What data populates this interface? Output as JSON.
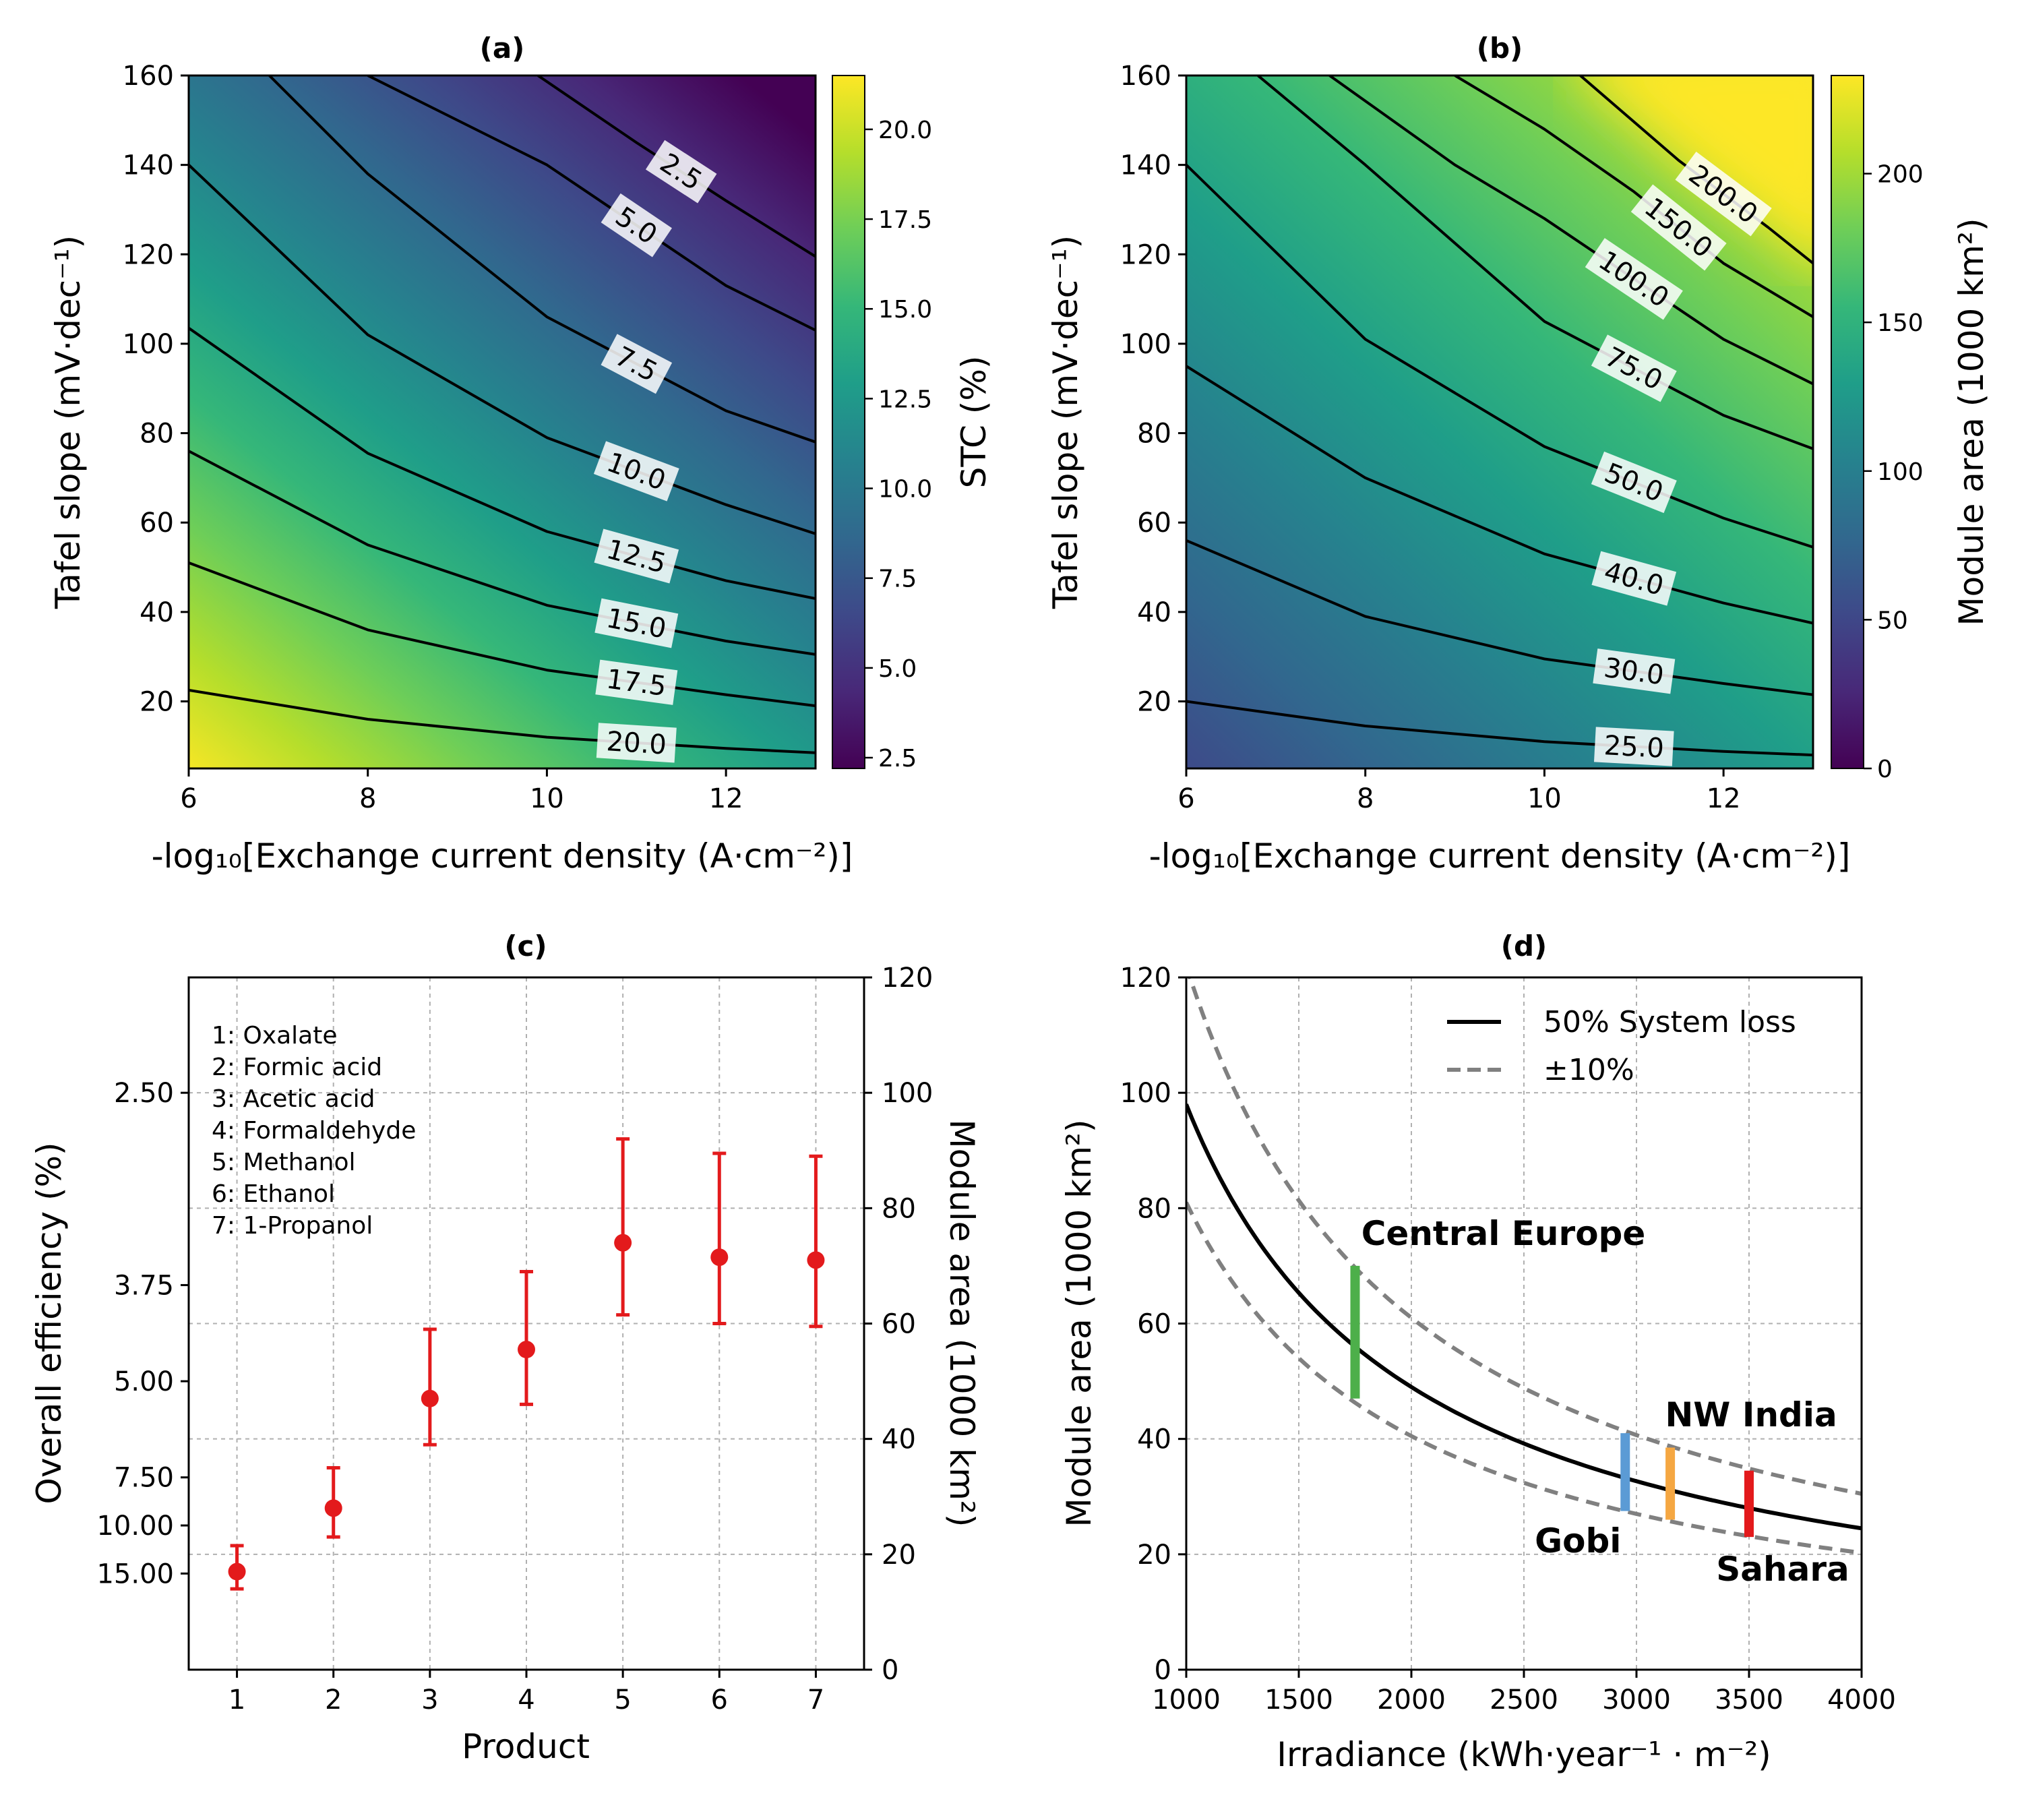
{
  "chart_data": [
    {
      "id": "a",
      "type": "heatmap",
      "title": "(a)",
      "xlabel": "-log₁₀[Exchange current density (A·cm⁻²)]",
      "ylabel": "Tafel slope (mV·dec⁻¹)",
      "xlim": [
        6,
        13
      ],
      "ylim": [
        5,
        160
      ],
      "xticks": [
        "6",
        "8",
        "10",
        "12"
      ],
      "yticks": [
        "20",
        "40",
        "60",
        "80",
        "100",
        "120",
        "140",
        "160"
      ],
      "colorbar": {
        "label": "STC (%)",
        "range": [
          2.2,
          21.5
        ],
        "ticks": [
          "2.5",
          "5.0",
          "7.5",
          "10.0",
          "12.5",
          "15.0",
          "17.5",
          "20.0"
        ],
        "colormap": [
          "#440154",
          "#482878",
          "#3e4989",
          "#31688e",
          "#26828e",
          "#1f9e89",
          "#35b779",
          "#6ece58",
          "#b5de2b",
          "#fde725"
        ]
      },
      "contours": [
        {
          "level": 20.0,
          "label": "20.0",
          "points": [
            [
              6.0,
              22.5
            ],
            [
              8.0,
              16.0
            ],
            [
              10.0,
              12.0
            ],
            [
              12.0,
              9.5
            ],
            [
              13.0,
              8.5
            ]
          ]
        },
        {
          "level": 17.5,
          "label": "17.5",
          "points": [
            [
              6.0,
              51.0
            ],
            [
              8.0,
              36.0
            ],
            [
              10.0,
              27.0
            ],
            [
              12.0,
              21.5
            ],
            [
              13.0,
              19.0
            ]
          ]
        },
        {
          "level": 15.0,
          "label": "15.0",
          "points": [
            [
              6.0,
              76.0
            ],
            [
              8.0,
              55.0
            ],
            [
              10.0,
              41.5
            ],
            [
              12.0,
              33.5
            ],
            [
              13.0,
              30.5
            ]
          ]
        },
        {
          "level": 12.5,
          "label": "12.5",
          "points": [
            [
              6.0,
              103.5
            ],
            [
              8.0,
              75.5
            ],
            [
              10.0,
              58.0
            ],
            [
              12.0,
              47.0
            ],
            [
              13.0,
              43.0
            ]
          ]
        },
        {
          "level": 10.0,
          "label": "10.0",
          "points": [
            [
              6.0,
              140.0
            ],
            [
              8.0,
              102.0
            ],
            [
              10.0,
              79.0
            ],
            [
              12.0,
              64.0
            ],
            [
              13.0,
              57.5
            ]
          ]
        },
        {
          "level": 7.5,
          "label": "7.5",
          "points": [
            [
              6.9,
              160.0
            ],
            [
              8.0,
              138.0
            ],
            [
              10.0,
              106.0
            ],
            [
              12.0,
              85.0
            ],
            [
              13.0,
              78.0
            ]
          ]
        },
        {
          "level": 5.0,
          "label": "5.0",
          "points": [
            [
              8.0,
              160.0
            ],
            [
              10.0,
              140.0
            ],
            [
              12.0,
              113.0
            ],
            [
              13.0,
              103.0
            ]
          ]
        },
        {
          "level": 2.5,
          "label": "2.5",
          "points": [
            [
              9.9,
              160.0
            ],
            [
              11.0,
              145.0
            ],
            [
              12.0,
              132.0
            ],
            [
              13.0,
              119.5
            ]
          ]
        }
      ]
    },
    {
      "id": "b",
      "type": "heatmap",
      "title": "(b)",
      "xlabel": "-log₁₀[Exchange current density (A·cm⁻²)]",
      "ylabel": "Tafel slope (mV·dec⁻¹)",
      "xlim": [
        6,
        13
      ],
      "ylim": [
        5,
        160
      ],
      "xticks": [
        "6",
        "8",
        "10",
        "12"
      ],
      "yticks": [
        "20",
        "40",
        "60",
        "80",
        "100",
        "120",
        "140",
        "160"
      ],
      "colorbar": {
        "label": "Module area (1000 km²)",
        "range": [
          0,
          233
        ],
        "ticks": [
          "0",
          "50",
          "100",
          "150",
          "200"
        ],
        "colormap": [
          "#440154",
          "#482878",
          "#3e4989",
          "#31688e",
          "#26828e",
          "#1f9e89",
          "#35b779",
          "#6ece58",
          "#b5de2b",
          "#fde725"
        ]
      },
      "contours": [
        {
          "level": 25.0,
          "label": "25.0",
          "points": [
            [
              6.0,
              20.0
            ],
            [
              8.0,
              14.5
            ],
            [
              10.0,
              11.0
            ],
            [
              12.0,
              8.8
            ],
            [
              13.0,
              8.0
            ]
          ]
        },
        {
          "level": 30.0,
          "label": "30.0",
          "points": [
            [
              6.0,
              56.0
            ],
            [
              8.0,
              39.0
            ],
            [
              10.0,
              29.5
            ],
            [
              12.0,
              24.0
            ],
            [
              13.0,
              21.5
            ]
          ]
        },
        {
          "level": 40.0,
          "label": "40.0",
          "points": [
            [
              6.0,
              95.0
            ],
            [
              8.0,
              70.0
            ],
            [
              10.0,
              53.0
            ],
            [
              12.0,
              42.0
            ],
            [
              13.0,
              37.5
            ]
          ]
        },
        {
          "level": 50.0,
          "label": "50.0",
          "points": [
            [
              6.0,
              140.0
            ],
            [
              8.0,
              101.0
            ],
            [
              10.0,
              77.0
            ],
            [
              12.0,
              61.0
            ],
            [
              13.0,
              54.5
            ]
          ]
        },
        {
          "level": 75.0,
          "label": "75.0",
          "points": [
            [
              6.8,
              160.0
            ],
            [
              8.0,
              140.0
            ],
            [
              10.0,
              105.0
            ],
            [
              12.0,
              84.0
            ],
            [
              13.0,
              76.5
            ]
          ]
        },
        {
          "level": 100.0,
          "label": "100.0",
          "points": [
            [
              7.6,
              160.0
            ],
            [
              9.0,
              140.0
            ],
            [
              10.0,
              128.0
            ],
            [
              12.0,
              101.0
            ],
            [
              13.0,
              91.0
            ]
          ]
        },
        {
          "level": 150.0,
          "label": "150.0",
          "points": [
            [
              9.0,
              160.0
            ],
            [
              10.0,
              148.0
            ],
            [
              11.0,
              134.0
            ],
            [
              12.0,
              118.0
            ],
            [
              13.0,
              106.0
            ]
          ]
        },
        {
          "level": 200.0,
          "label": "200.0",
          "points": [
            [
              10.4,
              160.0
            ],
            [
              11.5,
              141.0
            ],
            [
              12.5,
              126.0
            ],
            [
              13.0,
              118.0
            ]
          ]
        }
      ]
    },
    {
      "id": "c",
      "type": "scatter",
      "title": "(c)",
      "xlabel": "Product",
      "ylabel": "Overall efficiency (%)",
      "ylabel_right": "Module area (1000 km²)",
      "xlim": [
        0.5,
        7.5
      ],
      "ylim_right": [
        0,
        120
      ],
      "xticks": [
        "1",
        "2",
        "3",
        "4",
        "5",
        "6",
        "7"
      ],
      "yticks_left": [
        "2.50",
        "3.75",
        "5.00",
        "7.50",
        "10.00",
        "15.00"
      ],
      "yticks_right": [
        "0",
        "20",
        "40",
        "60",
        "80",
        "100",
        "120"
      ],
      "products": [
        "1: Oxalate",
        "2: Formic acid",
        "3: Acetic acid",
        "4: Formaldehyde",
        "5: Methanol",
        "6: Ethanol",
        "7: 1-Propanol"
      ],
      "marker_color": "#e31a1c",
      "x": [
        1,
        2,
        3,
        4,
        5,
        6,
        7
      ],
      "y": [
        17.0,
        28.0,
        47.0,
        55.5,
        74.0,
        71.5,
        71.0
      ],
      "y_low": [
        14.0,
        23.0,
        39.0,
        46.0,
        61.5,
        60.0,
        59.5
      ],
      "y_high": [
        21.5,
        35.0,
        59.0,
        69.0,
        92.0,
        89.5,
        89.0
      ]
    },
    {
      "id": "d",
      "type": "line",
      "title": "(d)",
      "xlabel": "Irradiance (kWh·year⁻¹ · m⁻²)",
      "ylabel": "Module area (1000 km²)",
      "xlim": [
        1000,
        4000
      ],
      "ylim": [
        0,
        120
      ],
      "xticks": [
        "1000",
        "1500",
        "2000",
        "2500",
        "3000",
        "3500",
        "4000"
      ],
      "yticks": [
        "0",
        "20",
        "40",
        "60",
        "80",
        "100",
        "120"
      ],
      "legend_position": "top-right",
      "series": [
        {
          "name": "50% System loss",
          "style": "solid",
          "color": "#000000",
          "k": 98000
        },
        {
          "name": "±10%",
          "style": "dashed",
          "color": "#808080",
          "k": 122000
        },
        {
          "name": "",
          "style": "dashed",
          "color": "#808080",
          "k": 81000
        }
      ],
      "regions": [
        {
          "label": "Central Europe",
          "x": 1750,
          "y_low": 47,
          "y_high": 70,
          "color": "#4daf4a"
        },
        {
          "label": "Gobi",
          "x": 2950,
          "y_low": 27.5,
          "y_high": 41,
          "color": "#5b9bd5"
        },
        {
          "label": "NW India",
          "x": 3150,
          "y_low": 26,
          "y_high": 38.5,
          "color": "#f5a742"
        },
        {
          "label": "Sahara",
          "x": 3500,
          "y_low": 23,
          "y_high": 34.5,
          "color": "#e31a1c"
        }
      ]
    }
  ]
}
